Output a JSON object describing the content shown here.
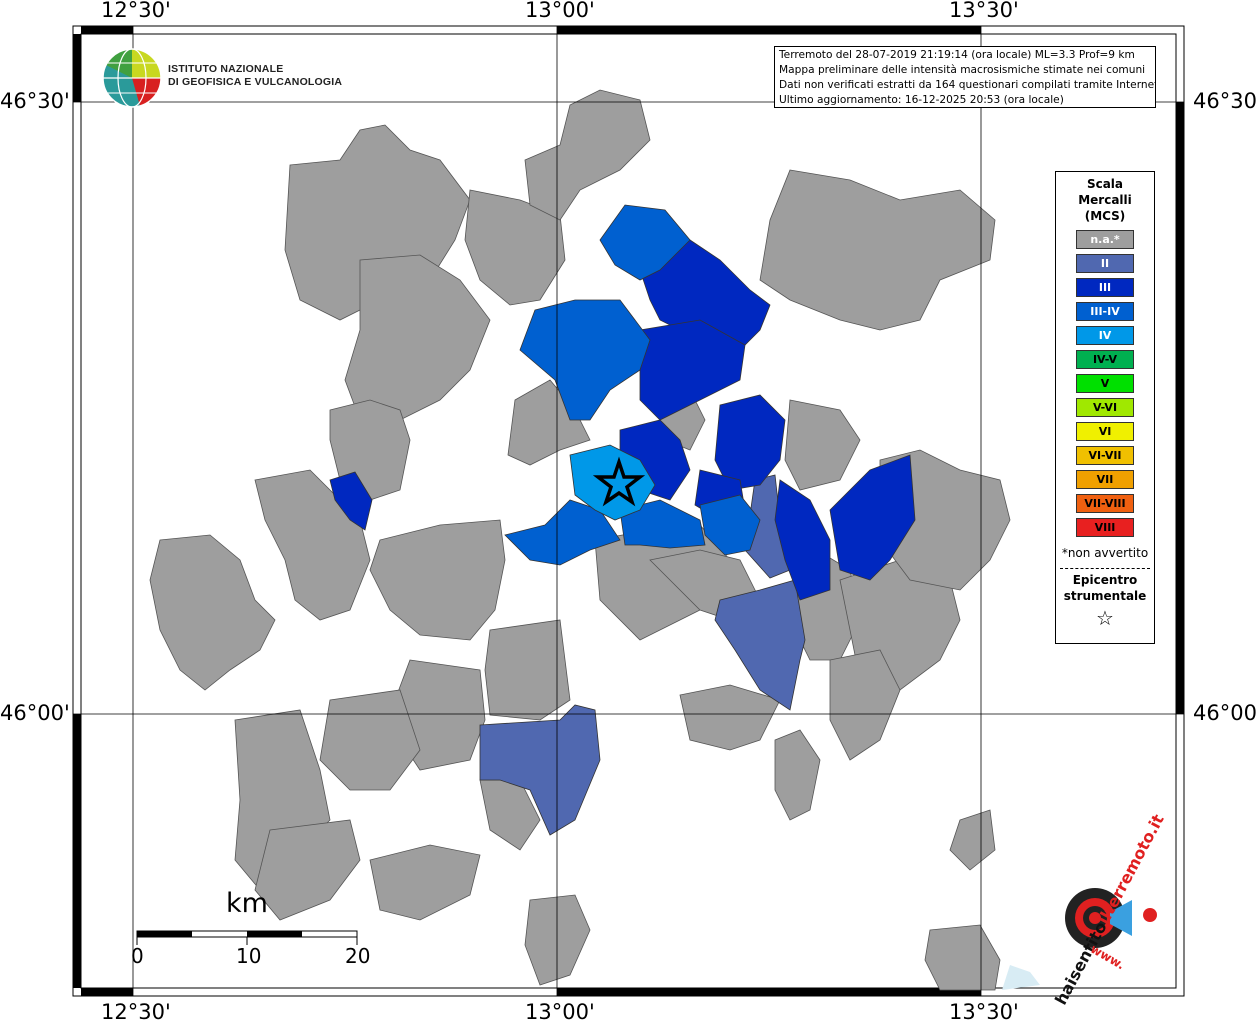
{
  "map": {
    "coords_top": [
      "12°30'",
      "13°00'",
      "13°30'"
    ],
    "coords_bottom": [
      "12°30'",
      "13°00'",
      "13°30'"
    ],
    "coords_left": [
      "46°30'",
      "46°00'"
    ],
    "coords_right": [
      "46°30'",
      "46°00'"
    ]
  },
  "logo": {
    "line1": "ISTITUTO NAZIONALE",
    "line2": "DI GEOFISICA E VULCANOLOGIA"
  },
  "info": {
    "line1": "Terremoto del 28-07-2019 21:19:14 (ora locale) ML=3.3 Prof=9 km",
    "line2": "Mappa preliminare delle intensità macrosismiche stimate nei comuni",
    "line3": "Dati non verificati estratti da 164 questionari compilati tramite Internet.",
    "line4": "Ultimo aggiornamento: 16-12-2025 20:53 (ora locale)"
  },
  "legend": {
    "title1": "Scala",
    "title2": "Mercalli",
    "title3": "(MCS)",
    "items": [
      {
        "label": "n.a.*",
        "color": "#9e9e9e",
        "text": "#ffffff"
      },
      {
        "label": "II",
        "color": "#5068b0",
        "text": "#ffffff"
      },
      {
        "label": "III",
        "color": "#0028c0",
        "text": "#ffffff"
      },
      {
        "label": "III-IV",
        "color": "#0060d0",
        "text": "#ffffff"
      },
      {
        "label": "IV",
        "color": "#0098e8",
        "text": "#ffffff"
      },
      {
        "label": "IV-V",
        "color": "#00b050",
        "text": "#000000"
      },
      {
        "label": "V",
        "color": "#00e000",
        "text": "#000000"
      },
      {
        "label": "V-VI",
        "color": "#a0e800",
        "text": "#000000"
      },
      {
        "label": "VI",
        "color": "#f0f000",
        "text": "#000000"
      },
      {
        "label": "VI-VII",
        "color": "#f0c000",
        "text": "#000000"
      },
      {
        "label": "VII",
        "color": "#f0a000",
        "text": "#000000"
      },
      {
        "label": "VII-VIII",
        "color": "#f06010",
        "text": "#000000"
      },
      {
        "label": "VIII",
        "color": "#e82020",
        "text": "#000000"
      }
    ],
    "note": "*non avvertito",
    "epicenter1": "Epicentro",
    "epicenter2": "strumentale",
    "epicenter_symbol": "☆"
  },
  "scalebar": {
    "unit": "km",
    "labels": [
      "0",
      "10",
      "20"
    ]
  },
  "brand": {
    "text1": "haisentito",
    "text2": "ilterremoto",
    "text3": ".it",
    "text4": "www."
  }
}
